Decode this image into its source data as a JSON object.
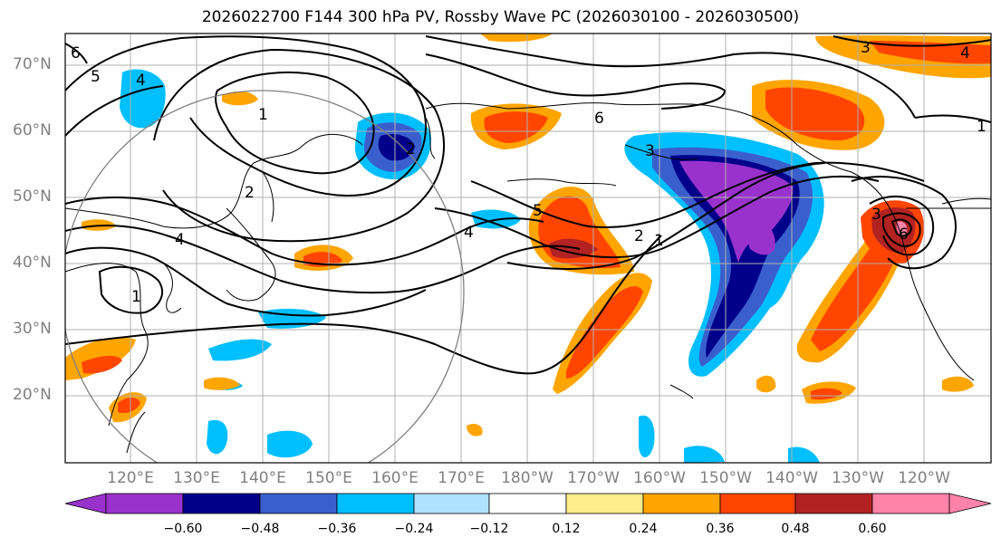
{
  "title": "2026022700 F144 300 hPa PV, Rossby Wave PC (2026030100 - 2026030500)",
  "lat_labels": [
    "70°N",
    "60°N",
    "50°N",
    "40°N",
    "30°N",
    "20°N"
  ],
  "lon_labels": [
    "120°E",
    "130°E",
    "140°E",
    "150°E",
    "160°E",
    "170°E",
    "180°W",
    "170°W",
    "160°W",
    "150°W",
    "140°W",
    "130°W",
    "120°W"
  ],
  "contour_labels": [
    "6",
    "5",
    "4",
    "1",
    "2",
    "4",
    "1",
    "2",
    "5",
    "4",
    "6",
    "2",
    "1",
    "3",
    "3",
    "4",
    "1",
    "3",
    "6"
  ],
  "colorbar": {
    "ticks": [
      "−0.60",
      "−0.48",
      "−0.36",
      "−0.24",
      "−0.12",
      "0.12",
      "0.24",
      "0.36",
      "0.48",
      "0.60"
    ],
    "colors": [
      "#9932cc",
      "#00008b",
      "#3a5fcd",
      "#00bfff",
      "#b0e2ff",
      "#ffffff",
      "#ffec8b",
      "#ffa500",
      "#ff4500",
      "#b22222",
      "#ff82ab"
    ]
  }
}
